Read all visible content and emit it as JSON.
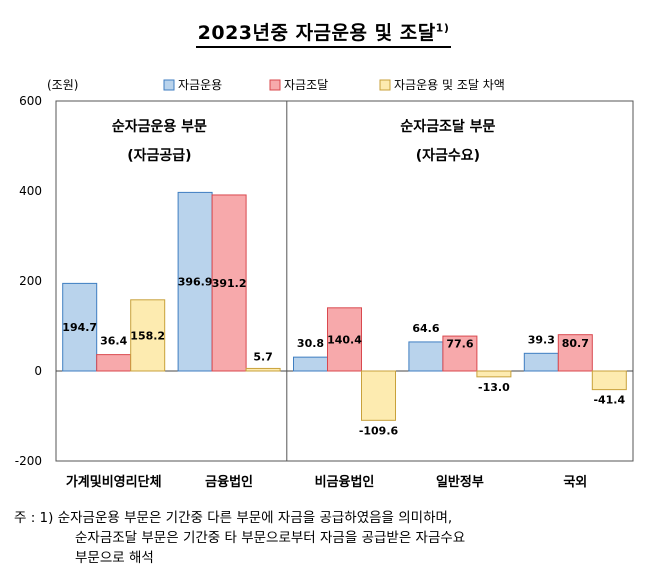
{
  "title": "2023년중  자금운용  및  조달",
  "title_superscript": "1)",
  "note": {
    "prefix": "주 : 1)",
    "line1": "순자금운용 부문은 기간중 다른 부문에 자금을 공급하였음을 의미하며,",
    "line2": "순자금조달 부문은 기간중 타 부문으로부터 자금을 공급받은 자금수요",
    "line3": "부문으로 해석"
  },
  "colors": {
    "운용": "#b9d3ec",
    "조달": "#f7a9ab",
    "차액": "#fdebb0",
    "stroke_운용": "#3f7ec1",
    "stroke_조달": "#d9484e",
    "stroke_차액": "#c8a13b"
  },
  "chart_data": {
    "type": "bar",
    "unit_label": "(조원)",
    "ylim": [
      -200,
      600
    ],
    "yticks": [
      -200,
      0,
      200,
      400,
      600
    ],
    "categories": [
      "가계및비영리단체",
      "금융법인",
      "비금융법인",
      "일반정부",
      "국외"
    ],
    "series": [
      {
        "name": "자금운용",
        "values": [
          194.7,
          396.9,
          30.8,
          64.6,
          39.3
        ]
      },
      {
        "name": "자금조달",
        "values": [
          36.4,
          391.2,
          140.4,
          77.6,
          80.7
        ]
      },
      {
        "name": "자금운용 및 조달 차액",
        "values": [
          158.2,
          5.7,
          -109.6,
          -13.0,
          -41.4
        ]
      }
    ],
    "legend_position": "top",
    "panels": [
      {
        "title": "순자금운용 부문",
        "subtitle": "(자금공급)"
      },
      {
        "title": "순자금조달 부문",
        "subtitle": "(자금수요)"
      }
    ]
  }
}
